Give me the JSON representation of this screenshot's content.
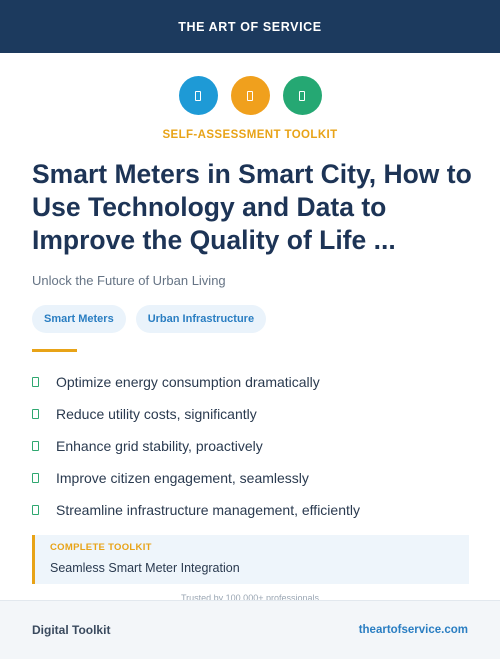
{
  "header": {
    "brand": "THE ART OF SERVICE"
  },
  "icons": [
    {
      "name": "blue-circle-icon",
      "color": "#1e9ad6"
    },
    {
      "name": "orange-circle-icon",
      "color": "#f0a01d"
    },
    {
      "name": "green-circle-icon",
      "color": "#25a873"
    }
  ],
  "eyebrow": "SELF-ASSESSMENT TOOLKIT",
  "title": "Smart Meters in Smart City, How to Use Technology and Data to Improve the Quality of Life ...",
  "subtitle": "Unlock the Future of Urban Living",
  "tags": [
    "Smart Meters",
    "Urban Infrastructure"
  ],
  "features": [
    "Optimize energy consumption dramatically",
    "Reduce utility costs, significantly",
    "Enhance grid stability, proactively",
    "Improve citizen engagement, seamlessly",
    "Streamline infrastructure management, efficiently"
  ],
  "callout": {
    "label": "COMPLETE TOOLKIT",
    "text": "Seamless Smart Meter Integration"
  },
  "trusted": "Trusted by 100,000+ professionals",
  "footer": {
    "left": "Digital Toolkit",
    "right": "theartofservice.com"
  }
}
